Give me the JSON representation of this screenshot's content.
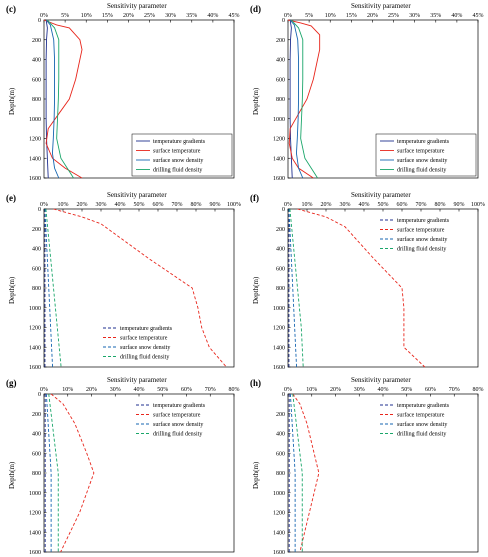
{
  "colors": {
    "temperature_gradients": "#1f2f8f",
    "surface_temperature": "#e8261c",
    "surface_snow_density": "#1565b0",
    "drilling_fluid_density": "#1aa66a",
    "axis": "#000000"
  },
  "chart_data": [
    {
      "panel_label": "(c)",
      "type": "line",
      "title": "Sensitivity parameter",
      "ylabel": "Depth(m)",
      "x_unit": "%",
      "xlim": [
        0,
        45
      ],
      "x_ticks": [
        "0%",
        "5%",
        "10%",
        "15%",
        "20%",
        "25%",
        "30%",
        "35%",
        "40%",
        "45%"
      ],
      "ylim": [
        0,
        1600
      ],
      "y_ticks": [
        "0",
        "200",
        "400",
        "600",
        "800",
        "1000",
        "1200",
        "1400",
        "1600"
      ],
      "line_style": "solid",
      "legend_position": "bottom-right",
      "series": [
        {
          "name": "temperature gradients",
          "x": [
            0.5,
            0.8,
            0.6,
            0.5,
            0.5,
            0.5,
            0.5,
            0.6,
            0.8,
            1
          ],
          "y": [
            0,
            80,
            200,
            400,
            600,
            800,
            1000,
            1200,
            1400,
            1600
          ]
        },
        {
          "name": "surface temperature",
          "x": [
            0,
            3,
            6,
            8.5,
            9,
            8.5,
            7.5,
            6,
            3.5,
            1,
            0.5,
            2,
            5,
            9
          ],
          "y": [
            0,
            50,
            80,
            200,
            300,
            400,
            600,
            800,
            950,
            1100,
            1250,
            1400,
            1500,
            1600
          ]
        },
        {
          "name": "surface snow density",
          "x": [
            0.5,
            1.5,
            2.3,
            2.5,
            2.5,
            2.5,
            2.4,
            2.2,
            2,
            2.5,
            3.5
          ],
          "y": [
            0,
            50,
            200,
            400,
            600,
            800,
            1000,
            1200,
            1350,
            1500,
            1600
          ]
        },
        {
          "name": "drilling fluid density",
          "x": [
            0.8,
            2.5,
            3.5,
            3.5,
            3.5,
            3.4,
            3.2,
            3,
            4,
            7
          ],
          "y": [
            0,
            80,
            200,
            400,
            600,
            800,
            1000,
            1200,
            1400,
            1600
          ]
        }
      ]
    },
    {
      "panel_label": "(d)",
      "type": "line",
      "title": "Sensitivity parameter",
      "ylabel": "Depth(m)",
      "x_unit": "%",
      "xlim": [
        0,
        45
      ],
      "x_ticks": [
        "0%",
        "5%",
        "10%",
        "15%",
        "20%",
        "25%",
        "30%",
        "35%",
        "40%",
        "45%"
      ],
      "ylim": [
        0,
        1600
      ],
      "y_ticks": [
        "0",
        "200",
        "400",
        "600",
        "800",
        "1000",
        "1200",
        "1400",
        "1600"
      ],
      "line_style": "solid",
      "legend_position": "bottom-right",
      "series": [
        {
          "name": "temperature gradients",
          "x": [
            0.5,
            0.8,
            0.6,
            0.5,
            0.5,
            0.5,
            0.5,
            0.6,
            0.8,
            1
          ],
          "y": [
            0,
            80,
            200,
            400,
            600,
            800,
            1000,
            1200,
            1400,
            1600
          ]
        },
        {
          "name": "surface temperature",
          "x": [
            0,
            3,
            5.5,
            7.5,
            7.5,
            7,
            6,
            4.5,
            2.5,
            0.5,
            0.3,
            1,
            2.5,
            6
          ],
          "y": [
            0,
            30,
            60,
            150,
            300,
            400,
            600,
            800,
            950,
            1100,
            1250,
            1400,
            1500,
            1600
          ]
        },
        {
          "name": "surface snow density",
          "x": [
            0.5,
            1.5,
            2.3,
            2.5,
            2.5,
            2.5,
            2.4,
            2.2,
            2,
            2.5,
            3.5
          ],
          "y": [
            0,
            50,
            200,
            400,
            600,
            800,
            1000,
            1200,
            1350,
            1500,
            1600
          ]
        },
        {
          "name": "drilling fluid density",
          "x": [
            0.8,
            2.5,
            3.5,
            3.5,
            3.5,
            3.4,
            3.2,
            3,
            4,
            7
          ],
          "y": [
            0,
            80,
            200,
            400,
            600,
            800,
            1000,
            1200,
            1400,
            1600
          ]
        }
      ]
    },
    {
      "panel_label": "(e)",
      "type": "line",
      "title": "Sensitivity parameter",
      "ylabel": "Depth(m)",
      "x_unit": "%",
      "xlim": [
        0,
        100
      ],
      "x_ticks": [
        "0%",
        "10%",
        "20%",
        "30%",
        "40%",
        "50%",
        "60%",
        "70%",
        "80%",
        "90%",
        "100%"
      ],
      "ylim": [
        0,
        1600
      ],
      "y_ticks": [
        "0",
        "200",
        "400",
        "600",
        "800",
        "1000",
        "1200",
        "1400",
        "1600"
      ],
      "line_style": "dashed",
      "legend_position": "bottom-center",
      "series": [
        {
          "name": "temperature gradients",
          "x": [
            0.5,
            0.5,
            0.5,
            0.5,
            0.5,
            0.5,
            0.5,
            0.5,
            0.5
          ],
          "y": [
            0,
            200,
            400,
            600,
            800,
            1000,
            1200,
            1400,
            1600
          ]
        },
        {
          "name": "surface temperature",
          "x": [
            5,
            20,
            30,
            55,
            78,
            81,
            83,
            87,
            96
          ],
          "y": [
            0,
            80,
            150,
            500,
            800,
            1000,
            1200,
            1400,
            1600
          ]
        },
        {
          "name": "surface snow density",
          "x": [
            0.5,
            1,
            1.5,
            2,
            2.5,
            3,
            3.5,
            4,
            4.5
          ],
          "y": [
            0,
            200,
            400,
            600,
            800,
            1000,
            1200,
            1400,
            1600
          ]
        },
        {
          "name": "drilling fluid density",
          "x": [
            1,
            2,
            3,
            4,
            5,
            6,
            7,
            8,
            9
          ],
          "y": [
            0,
            200,
            400,
            600,
            800,
            1000,
            1200,
            1400,
            1600
          ]
        }
      ]
    },
    {
      "panel_label": "(f)",
      "type": "line",
      "title": "Sensitivity parameter",
      "ylabel": "Depth(m)",
      "x_unit": "%",
      "xlim": [
        0,
        100
      ],
      "x_ticks": [
        "0%",
        "10%",
        "20%",
        "30%",
        "40%",
        "50%",
        "60%",
        "70%",
        "80%",
        "90%",
        "100%"
      ],
      "ylim": [
        0,
        1600
      ],
      "y_ticks": [
        "0",
        "200",
        "400",
        "600",
        "800",
        "1000",
        "1200",
        "1400",
        "1600"
      ],
      "line_style": "dashed",
      "legend_position": "top-right",
      "series": [
        {
          "name": "temperature gradients",
          "x": [
            0.5,
            0.5,
            0.5,
            0.5,
            0.5,
            0.5,
            0.5,
            0.5,
            0.5
          ],
          "y": [
            0,
            200,
            400,
            600,
            800,
            1000,
            1200,
            1400,
            1600
          ]
        },
        {
          "name": "surface temperature",
          "x": [
            5,
            20,
            30,
            45,
            60,
            61,
            61,
            61,
            72
          ],
          "y": [
            0,
            80,
            180,
            500,
            800,
            1000,
            1200,
            1400,
            1600
          ]
        },
        {
          "name": "surface snow density",
          "x": [
            0.5,
            1,
            1.5,
            2,
            2.5,
            3,
            3.5,
            4,
            4.5
          ],
          "y": [
            0,
            200,
            400,
            600,
            800,
            1000,
            1200,
            1400,
            1600
          ]
        },
        {
          "name": "drilling fluid density",
          "x": [
            1,
            2,
            3,
            4,
            5,
            6,
            7,
            7.5,
            8
          ],
          "y": [
            0,
            200,
            400,
            600,
            800,
            1000,
            1200,
            1400,
            1600
          ]
        }
      ]
    },
    {
      "panel_label": "(g)",
      "type": "line",
      "title": "Sensitivity parameter",
      "ylabel": "Depth(m)",
      "x_unit": "%",
      "xlim": [
        0,
        80
      ],
      "x_ticks": [
        "0%",
        "10%",
        "20%",
        "30%",
        "40%",
        "50%",
        "60%",
        "70%",
        "80%"
      ],
      "ylim": [
        0,
        1600
      ],
      "y_ticks": [
        "0",
        "200",
        "400",
        "600",
        "800",
        "1000",
        "1200",
        "1400",
        "1600"
      ],
      "line_style": "dashed",
      "legend_position": "top-right",
      "series": [
        {
          "name": "temperature gradients",
          "x": [
            0.5,
            0.5,
            0.5,
            0.5,
            0.5,
            0.5,
            0.5,
            0.5,
            0.5
          ],
          "y": [
            0,
            200,
            400,
            600,
            800,
            1000,
            1200,
            1400,
            1600
          ]
        },
        {
          "name": "surface temperature",
          "x": [
            3,
            8,
            13,
            18,
            21,
            18,
            15,
            11,
            7
          ],
          "y": [
            0,
            100,
            300,
            600,
            800,
            1000,
            1200,
            1400,
            1600
          ]
        },
        {
          "name": "surface snow density",
          "x": [
            1,
            1.5,
            2,
            2.5,
            3,
            3,
            3,
            3,
            3
          ],
          "y": [
            0,
            200,
            400,
            600,
            800,
            1000,
            1200,
            1400,
            1600
          ]
        },
        {
          "name": "drilling fluid density",
          "x": [
            2,
            3,
            4,
            5,
            6,
            6,
            6,
            6,
            6
          ],
          "y": [
            0,
            200,
            400,
            600,
            800,
            1000,
            1200,
            1400,
            1600
          ]
        }
      ]
    },
    {
      "panel_label": "(h)",
      "type": "line",
      "title": "Sensitivity parameter",
      "ylabel": "Depth(m)",
      "x_unit": "%",
      "xlim": [
        0,
        80
      ],
      "x_ticks": [
        "0%",
        "10%",
        "20%",
        "30%",
        "40%",
        "50%",
        "60%",
        "70%",
        "80%"
      ],
      "ylim": [
        0,
        1600
      ],
      "y_ticks": [
        "0",
        "200",
        "400",
        "600",
        "800",
        "1000",
        "1200",
        "1400",
        "1600"
      ],
      "line_style": "dashed",
      "legend_position": "top-right",
      "series": [
        {
          "name": "temperature gradients",
          "x": [
            0.5,
            0.5,
            0.5,
            0.5,
            0.5,
            0.5,
            0.5,
            0.5,
            0.5
          ],
          "y": [
            0,
            200,
            400,
            600,
            800,
            1000,
            1200,
            1400,
            1600
          ]
        },
        {
          "name": "surface temperature",
          "x": [
            2,
            5,
            8,
            11,
            13,
            11,
            9,
            7,
            5
          ],
          "y": [
            0,
            100,
            300,
            600,
            800,
            1000,
            1200,
            1400,
            1600
          ]
        },
        {
          "name": "surface snow density",
          "x": [
            1,
            1.5,
            2,
            2.5,
            3,
            3,
            3,
            3,
            3
          ],
          "y": [
            0,
            200,
            400,
            600,
            800,
            1000,
            1200,
            1400,
            1600
          ]
        },
        {
          "name": "drilling fluid density",
          "x": [
            2,
            3,
            4,
            5,
            6,
            6,
            6,
            6,
            6
          ],
          "y": [
            0,
            200,
            400,
            600,
            800,
            1000,
            1200,
            1400,
            1600
          ]
        }
      ]
    }
  ]
}
